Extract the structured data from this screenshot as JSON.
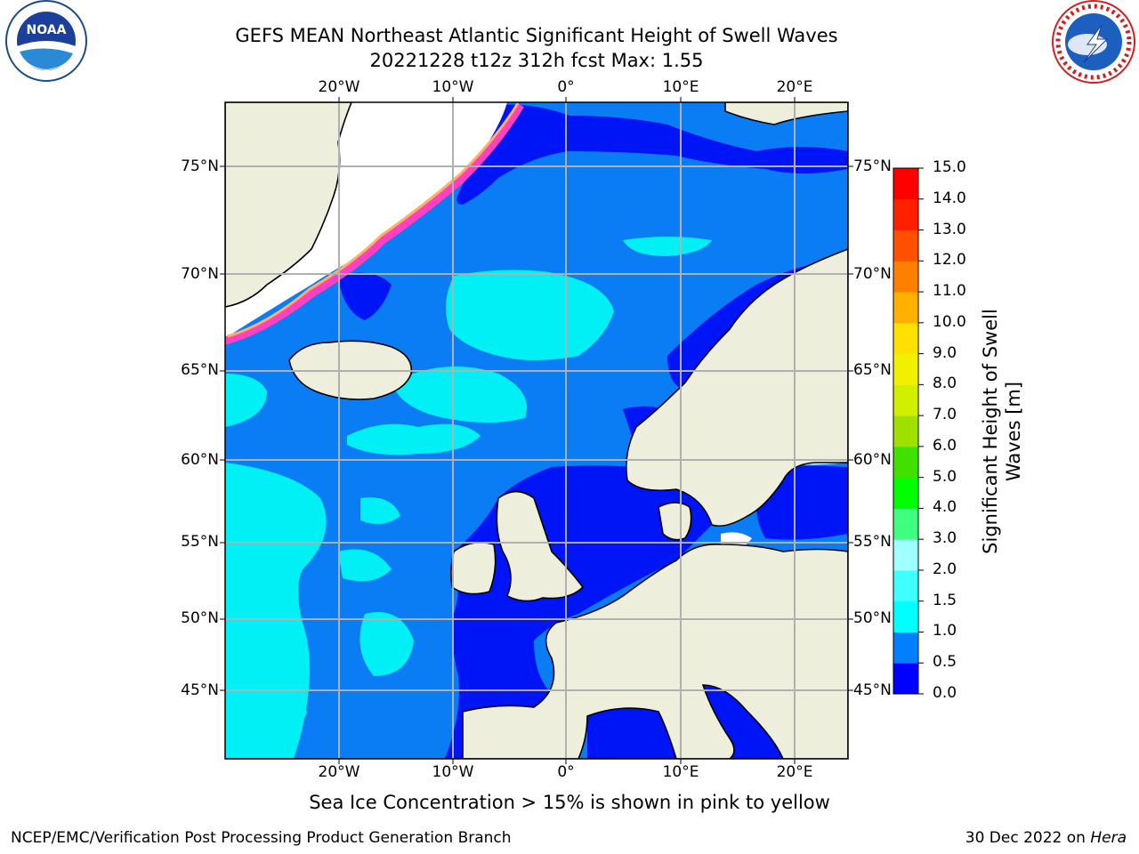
{
  "header": {
    "title_line1": "GEFS MEAN Northeast Atlantic Significant Height of Swell Waves",
    "title_line2": "20221228 t12z 312h fcst   Max: 1.55"
  },
  "logos": {
    "left": "noaa-logo",
    "right": "nws-logo"
  },
  "map": {
    "lon_range": [
      -30,
      25
    ],
    "lat_range": [
      41,
      78
    ],
    "lon_ticks": [
      {
        "value": -20,
        "label": "20°W"
      },
      {
        "value": -10,
        "label": "10°W"
      },
      {
        "value": 0,
        "label": "0°"
      },
      {
        "value": 10,
        "label": "10°E"
      },
      {
        "value": 20,
        "label": "20°E"
      }
    ],
    "lat_ticks": [
      {
        "value": 75,
        "label": "75°N"
      },
      {
        "value": 70,
        "label": "70°N"
      },
      {
        "value": 65,
        "label": "65°N"
      },
      {
        "value": 60,
        "label": "60°N"
      },
      {
        "value": 55,
        "label": "55°N"
      },
      {
        "value": 50,
        "label": "50°N"
      },
      {
        "value": 45,
        "label": "45°N"
      }
    ],
    "colors": {
      "land": "#eeeedd",
      "ocean_mid": "#0a7df5",
      "ocean_low": "#0015f5",
      "ocean_high": "#00f0f5",
      "grid": "#b0b0b0"
    }
  },
  "colorbar": {
    "label": "Significant Height of Swell Waves [m]",
    "ticks": [
      "0.0",
      "0.5",
      "1.0",
      "1.5",
      "2.0",
      "3.0",
      "4.0",
      "5.0",
      "6.0",
      "7.0",
      "8.0",
      "9.0",
      "10.0",
      "11.0",
      "12.0",
      "13.0",
      "14.0",
      "15.0"
    ],
    "colors": [
      "#0000ff",
      "#0080ff",
      "#00ffff",
      "#40ffff",
      "#a0ffff",
      "#40ff80",
      "#00ff00",
      "#40e000",
      "#a0e000",
      "#d0f000",
      "#f0f000",
      "#ffe000",
      "#ffb000",
      "#ff8000",
      "#ff5000",
      "#ff2000",
      "#ff0000"
    ]
  },
  "notes": {
    "sea_ice": "Sea Ice Concentration > 15% is shown in pink to yellow"
  },
  "footer": {
    "left": "NCEP/EMC/Verification Post Processing Product Generation Branch",
    "date": "30 Dec 2022 on",
    "host": "Hera"
  }
}
